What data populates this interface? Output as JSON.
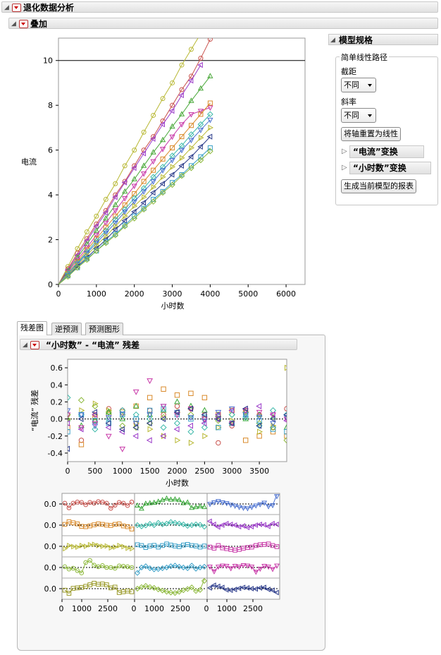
{
  "report": {
    "title": "退化数据分析",
    "overlay_title": "叠加"
  },
  "model_spec": {
    "title": "模型规格",
    "group_title": "简单线性路径",
    "intercept_label": "截距",
    "intercept_value": "不同",
    "slope_label": "斜率",
    "slope_value": "不同",
    "reset_axes_button": "将轴重置为线性",
    "current_transform_label": "“电流”变换",
    "hours_transform_label": "“小时数”变换",
    "generate_report_button": "生成当前模型的报表"
  },
  "tabs": [
    {
      "label": "残差图",
      "active": true
    },
    {
      "label": "逆预测",
      "active": false
    },
    {
      "label": "预测图形",
      "active": false
    }
  ],
  "residual_title": "“小时数” - “电流” 残差",
  "colors": [
    "#c8504b",
    "#d98a2a",
    "#b8b834",
    "#8cb83a",
    "#3aa83a",
    "#3ab8a8",
    "#3aa0c8",
    "#4a70d0",
    "#7a4ac8",
    "#b83ab8",
    "#d0308c",
    "#2a3a8a",
    "#2a2a2a"
  ],
  "chart_data": [
    {
      "type": "line",
      "title": "",
      "xlabel": "小时数",
      "ylabel": "电流",
      "xlim": [
        0,
        6500
      ],
      "ylim": [
        0,
        11
      ],
      "x_ticks": [
        0,
        1000,
        2000,
        3000,
        4000,
        5000,
        6000
      ],
      "y_ticks": [
        0,
        2,
        4,
        6,
        8,
        10
      ],
      "reference_line_y": 10,
      "x": [
        0,
        250,
        500,
        750,
        1000,
        1250,
        1500,
        1750,
        2000,
        2250,
        2500,
        2750,
        3000,
        3250,
        3500,
        3750,
        4000
      ],
      "series": [
        {
          "marker": "circle",
          "color": "#b8b834",
          "values": [
            0,
            0.8,
            1.6,
            2.35,
            3.05,
            3.8,
            4.5,
            5.3,
            6.0,
            6.8,
            7.55,
            8.3,
            9.0,
            9.8,
            10.5,
            11.2,
            null
          ]
        },
        {
          "marker": "circle",
          "color": "#c8504b",
          "values": [
            0,
            0.7,
            1.4,
            2.05,
            2.7,
            3.3,
            4.0,
            4.6,
            5.3,
            6.0,
            6.6,
            7.3,
            8.0,
            8.7,
            9.3,
            10.1,
            10.95
          ]
        },
        {
          "marker": "tri-left",
          "color": "#9a3ac8",
          "values": [
            0,
            0.65,
            1.3,
            1.95,
            2.6,
            3.2,
            3.9,
            4.55,
            5.2,
            5.85,
            6.5,
            7.15,
            7.75,
            8.45,
            9.1,
            9.8,
            null
          ]
        },
        {
          "marker": "tri-up",
          "color": "#4aa83a",
          "values": [
            0,
            0.6,
            1.2,
            1.8,
            2.4,
            2.95,
            3.55,
            4.15,
            4.7,
            5.3,
            5.9,
            6.45,
            7.05,
            7.6,
            8.2,
            8.75,
            9.3
          ]
        },
        {
          "marker": "tri-down",
          "color": "#c838a8",
          "values": [
            0,
            0.55,
            1.1,
            1.65,
            2.2,
            2.75,
            3.3,
            3.85,
            4.4,
            4.95,
            5.5,
            6.05,
            6.6,
            7.15,
            7.6,
            7.75,
            7.9
          ]
        },
        {
          "marker": "square",
          "color": "#d98a2a",
          "values": [
            0,
            0.5,
            1.0,
            1.55,
            2.05,
            2.55,
            3.05,
            3.55,
            4.05,
            4.6,
            5.1,
            5.6,
            6.1,
            6.6,
            7.1,
            7.6,
            8.1
          ]
        },
        {
          "marker": "diamond",
          "color": "#3ab8a8",
          "values": [
            0,
            0.5,
            0.95,
            1.45,
            1.95,
            2.4,
            2.9,
            3.35,
            3.85,
            4.3,
            4.8,
            5.25,
            5.75,
            6.2,
            6.7,
            7.15,
            7.6
          ]
        },
        {
          "marker": "tri-down",
          "color": "#4a70d0",
          "values": [
            0,
            0.45,
            0.9,
            1.4,
            1.85,
            2.3,
            2.75,
            3.25,
            3.7,
            4.15,
            4.6,
            5.1,
            5.55,
            6.0,
            6.45,
            6.9,
            7.35
          ]
        },
        {
          "marker": "tri-right",
          "color": "#b8b834",
          "values": [
            0,
            0.45,
            0.85,
            1.3,
            1.75,
            2.15,
            2.6,
            3.05,
            3.5,
            3.9,
            4.35,
            4.8,
            5.25,
            5.65,
            6.1,
            6.55,
            7.0
          ]
        },
        {
          "marker": "tri-left",
          "color": "#2a3a8a",
          "values": [
            0,
            0.4,
            0.8,
            1.2,
            1.6,
            2.0,
            2.45,
            2.85,
            3.25,
            3.65,
            4.1,
            4.5,
            4.9,
            5.3,
            5.7,
            6.15,
            6.6
          ]
        },
        {
          "marker": "square",
          "color": "#3aa0c8",
          "values": [
            0,
            0.4,
            0.75,
            1.15,
            1.5,
            1.9,
            2.25,
            2.65,
            3.05,
            3.4,
            3.8,
            4.15,
            4.55,
            4.9,
            5.3,
            5.7,
            6.1
          ]
        },
        {
          "marker": "diamond",
          "color": "#8cb83a",
          "values": [
            0,
            0.35,
            0.75,
            1.1,
            1.5,
            1.85,
            2.2,
            2.6,
            2.95,
            3.35,
            3.7,
            4.1,
            4.45,
            4.85,
            5.2,
            5.55,
            5.95
          ]
        }
      ]
    },
    {
      "type": "scatter",
      "title": "",
      "xlabel": "小时数",
      "ylabel": "“电流” 残差",
      "xlim": [
        0,
        4000
      ],
      "ylim": [
        -0.5,
        0.7
      ],
      "x_ticks": [
        0,
        500,
        1000,
        1500,
        2000,
        2500,
        3000,
        3500
      ],
      "y_ticks": [
        -0.4,
        -0.2,
        0.0,
        0.2,
        0.4,
        0.6
      ],
      "x": [
        0,
        250,
        500,
        750,
        1000,
        1250,
        1500,
        1750,
        2000,
        2250,
        2500,
        2750,
        3000,
        3250,
        3500,
        3750,
        4000
      ],
      "series": [
        {
          "marker": "circle",
          "color": "#c8504b",
          "values": [
            0.05,
            -0.25,
            0.05,
            0.12,
            0.1,
            -0.05,
            0.1,
            0.05,
            0.15,
            0.12,
            0.05,
            -0.28,
            -0.08,
            0.1,
            0.05,
            -0.1,
            0.12
          ]
        },
        {
          "marker": "square",
          "color": "#d98a2a",
          "values": [
            -0.1,
            -0.3,
            0.02,
            0.05,
            0.08,
            0.15,
            0.25,
            0.35,
            0.28,
            0.3,
            0.25,
            0.05,
            0.1,
            -0.25,
            -0.2,
            -0.15,
            -0.2
          ]
        },
        {
          "marker": "tri-right",
          "color": "#b8b834",
          "values": [
            0.0,
            0.1,
            0.18,
            0.1,
            0.05,
            -0.05,
            -0.12,
            -0.2,
            -0.25,
            -0.28,
            -0.2,
            -0.1,
            -0.02,
            0.08,
            -0.15,
            -0.08,
            0.6
          ]
        },
        {
          "marker": "diamond",
          "color": "#8cb83a",
          "values": [
            0.05,
            0.22,
            0.15,
            0.08,
            -0.08,
            -0.1,
            -0.05,
            0.02,
            0.08,
            0.05,
            0.0,
            -0.02,
            0.05,
            0.08,
            -0.05,
            -0.1,
            -0.25
          ]
        },
        {
          "marker": "tri-up",
          "color": "#3aa83a",
          "values": [
            0.0,
            -0.08,
            -0.02,
            0.08,
            0.0,
            0.15,
            0.05,
            0.1,
            0.2,
            0.15,
            0.1,
            0.05,
            -0.05,
            0.0,
            0.05,
            0.02,
            -0.1
          ]
        },
        {
          "marker": "diamond",
          "color": "#3ab8a8",
          "values": [
            0.25,
            0.05,
            -0.12,
            0.0,
            0.1,
            0.05,
            0.0,
            -0.1,
            -0.05,
            -0.15,
            -0.1,
            0.0,
            0.05,
            0.02,
            -0.08,
            0.1,
            0.05
          ]
        },
        {
          "marker": "square",
          "color": "#3aa0c8",
          "values": [
            -0.15,
            0.05,
            -0.02,
            -0.05,
            0.05,
            0.0,
            0.1,
            0.12,
            0.05,
            0.0,
            0.02,
            -0.1,
            -0.05,
            0.05,
            -0.02,
            -0.12,
            -0.15
          ]
        },
        {
          "marker": "tri-down",
          "color": "#4a70d0",
          "values": [
            0.1,
            0.05,
            -0.08,
            0.02,
            0.06,
            -0.05,
            0.05,
            0.15,
            0.08,
            0.02,
            -0.02,
            0.08,
            0.12,
            0.05,
            0.02,
            -0.05,
            0.02
          ]
        },
        {
          "marker": "tri-left",
          "color": "#9a3ac8",
          "values": [
            -0.05,
            -0.12,
            0.05,
            -0.1,
            -0.15,
            -0.2,
            -0.25,
            -0.2,
            -0.12,
            -0.08,
            -0.05,
            0.05,
            0.1,
            0.12,
            0.15,
            0.05,
            -0.02
          ]
        },
        {
          "marker": "tri-down",
          "color": "#c838a8",
          "values": [
            0.05,
            -0.1,
            -0.05,
            -0.2,
            -0.35,
            0.32,
            0.45,
            0.15,
            0.05,
            0.12,
            0.0,
            0.0,
            -0.05,
            0.1,
            0.08,
            0.05,
            0.0
          ]
        },
        {
          "marker": "tri-left",
          "color": "#2a3a8a",
          "values": [
            -0.35,
            0.0,
            0.08,
            -0.05,
            -0.12,
            -0.1,
            -0.05,
            0.0,
            0.08,
            0.12,
            0.05,
            0.0,
            -0.05,
            0.12,
            -0.08,
            0.0,
            0.05
          ]
        }
      ]
    }
  ],
  "small_multiples": {
    "y_tick_label": "0.0",
    "x_tick_labels": [
      "0",
      "1000",
      "2500"
    ],
    "panels": [
      {
        "marker": "circle",
        "color": "#c8504b"
      },
      {
        "marker": "tri-up",
        "color": "#3aa83a"
      },
      {
        "marker": "tri-down",
        "color": "#4a70d0"
      },
      {
        "marker": "square",
        "color": "#d98a2a"
      },
      {
        "marker": "diamond",
        "color": "#3ab8a8"
      },
      {
        "marker": "tri-left",
        "color": "#9a3ac8"
      },
      {
        "marker": "tri-right",
        "color": "#b8b834"
      },
      {
        "marker": "square",
        "color": "#3aa0c8"
      },
      {
        "marker": "square",
        "color": "#c838a8"
      },
      {
        "marker": "circle",
        "color": "#8cb83a"
      },
      {
        "marker": "diamond",
        "color": "#3aa0c8"
      },
      {
        "marker": "tri-down",
        "color": "#c838a8"
      },
      {
        "marker": "square",
        "color": "#9a9a2a"
      },
      {
        "marker": "diamond",
        "color": "#8cb83a"
      },
      {
        "marker": "tri-left",
        "color": "#2a3a8a"
      }
    ]
  }
}
